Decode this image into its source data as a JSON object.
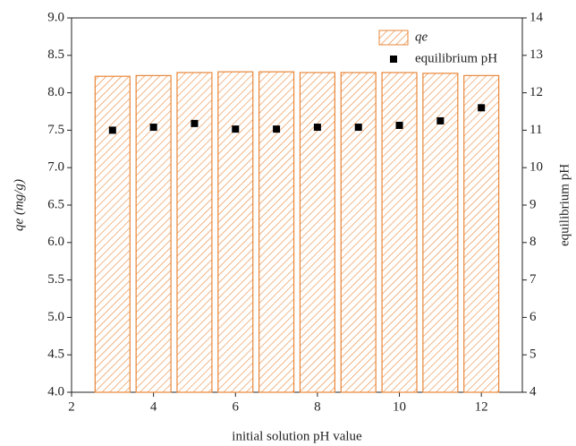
{
  "chart_data": {
    "type": "bar",
    "x_label": "initial solution pH value",
    "y_label": "qe (mg/g)",
    "y2_label": "equilibrium pH",
    "x": [
      3,
      4,
      5,
      6,
      7,
      8,
      9,
      10,
      11,
      12
    ],
    "series": [
      {
        "name": "qe",
        "type": "bar",
        "color": "#e8873a",
        "values": [
          8.22,
          8.23,
          8.27,
          8.28,
          8.28,
          8.27,
          8.27,
          8.27,
          8.26,
          8.23
        ]
      },
      {
        "name": "equilibrium pH",
        "type": "scatter",
        "axis": "y2",
        "color": "#000000",
        "values": [
          11.0,
          11.08,
          11.18,
          11.03,
          11.03,
          11.08,
          11.08,
          11.13,
          11.25,
          11.6
        ]
      }
    ],
    "xlim": [
      2,
      13
    ],
    "xticks": [
      2,
      4,
      6,
      8,
      10,
      12
    ],
    "ylim": [
      4,
      9
    ],
    "yticks": [
      {
        "value": 4,
        "label": "4.0"
      },
      {
        "value": 4.5,
        "label": "4.5"
      },
      {
        "value": 5,
        "label": "5.0"
      },
      {
        "value": 5.5,
        "label": "5.5"
      },
      {
        "value": 6,
        "label": "6.0"
      },
      {
        "value": 6.5,
        "label": "6.5"
      },
      {
        "value": 7,
        "label": "7.0"
      },
      {
        "value": 7.5,
        "label": "7.5"
      },
      {
        "value": 8,
        "label": "8.0"
      },
      {
        "value": 8.5,
        "label": "8.5"
      },
      {
        "value": 9,
        "label": "9.0"
      }
    ],
    "y2lim": [
      4,
      14
    ],
    "y2ticks": [
      4,
      5,
      6,
      7,
      8,
      9,
      10,
      11,
      12,
      13,
      14
    ],
    "legend": "top-right"
  }
}
